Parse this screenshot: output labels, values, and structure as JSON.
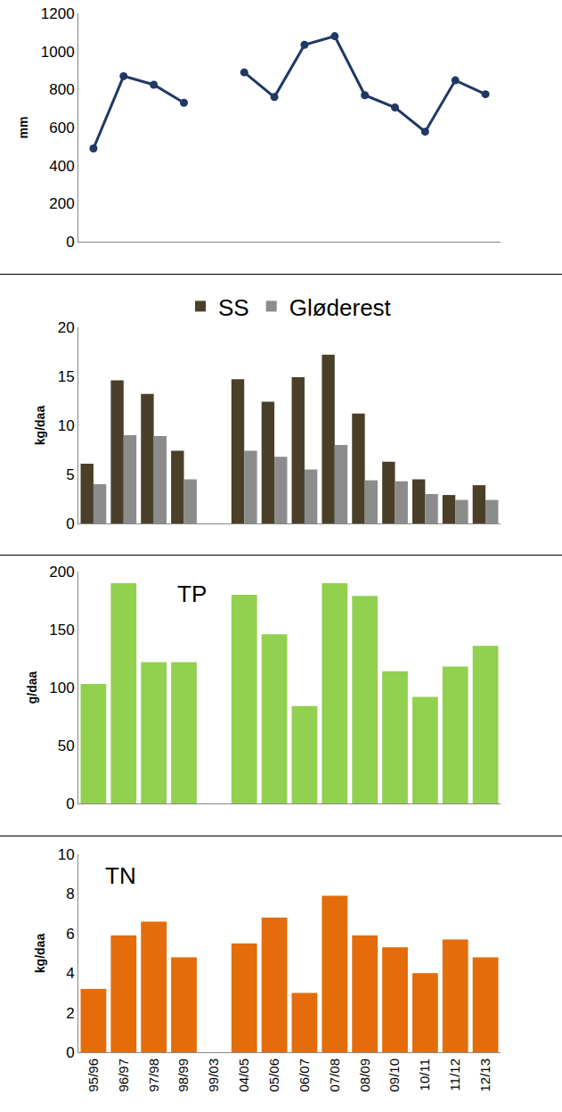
{
  "chart_data": [
    {
      "type": "line",
      "y_label": "mm",
      "categories": [
        "95/96",
        "96/97",
        "97/98",
        "98/99",
        "99/03",
        "04/05",
        "05/06",
        "06/07",
        "07/08",
        "08/09",
        "09/10",
        "10/11",
        "11/12",
        "12/13"
      ],
      "values": [
        490,
        870,
        825,
        730,
        null,
        890,
        760,
        1035,
        1080,
        770,
        705,
        578,
        848,
        775
      ],
      "color": "#203864",
      "marker": "circle",
      "ylim": [
        0,
        1200
      ],
      "yticks": [
        0,
        200,
        400,
        600,
        800,
        1000,
        1200
      ],
      "grid": false,
      "tick_labels": "y"
    },
    {
      "type": "bar",
      "y_label": "kg/daa",
      "categories": [
        "95/96",
        "96/97",
        "97/98",
        "98/99",
        "99/03",
        "04/05",
        "05/06",
        "06/07",
        "07/08",
        "08/09",
        "09/10",
        "10/11",
        "11/12",
        "12/13"
      ],
      "series": [
        {
          "name": "SS",
          "color": "#4a3f28",
          "values": [
            6.1,
            14.6,
            13.2,
            7.4,
            null,
            14.7,
            12.4,
            14.9,
            17.2,
            11.2,
            6.3,
            4.5,
            2.9,
            3.9
          ]
        },
        {
          "name": "Gløderest",
          "color": "#8c8c8c",
          "values": [
            4.0,
            9.0,
            8.9,
            4.5,
            null,
            7.4,
            6.8,
            5.5,
            8.0,
            4.4,
            4.3,
            3.0,
            2.4,
            2.4
          ]
        }
      ],
      "ylim": [
        0,
        20
      ],
      "yticks": [
        0,
        5,
        10,
        15,
        20
      ],
      "grid": false,
      "legend": "top",
      "tick_labels": "y"
    },
    {
      "type": "bar",
      "title": "TP",
      "y_label": "g/daa",
      "categories": [
        "95/96",
        "96/97",
        "97/98",
        "98/99",
        "99/03",
        "04/05",
        "05/06",
        "06/07",
        "07/08",
        "08/09",
        "09/10",
        "10/11",
        "11/12",
        "12/13"
      ],
      "values": [
        103,
        190,
        122,
        122,
        null,
        180,
        146,
        84,
        190,
        179,
        114,
        92,
        118,
        136
      ],
      "color": "#92d050",
      "ylim": [
        0,
        200
      ],
      "yticks": [
        0,
        50,
        100,
        150,
        200
      ],
      "grid": false,
      "tick_labels": "y"
    },
    {
      "type": "bar",
      "title": "TN",
      "y_label": "kg/daa",
      "categories": [
        "95/96",
        "96/97",
        "97/98",
        "98/99",
        "99/03",
        "04/05",
        "05/06",
        "06/07",
        "07/08",
        "08/09",
        "09/10",
        "10/11",
        "11/12",
        "12/13"
      ],
      "values": [
        3.2,
        5.9,
        6.6,
        4.8,
        null,
        5.5,
        6.8,
        3.0,
        7.9,
        5.9,
        5.3,
        4.0,
        5.7,
        4.8
      ],
      "color": "#e46c0a",
      "ylim": [
        0,
        10
      ],
      "yticks": [
        0,
        2,
        4,
        6,
        8,
        10
      ],
      "grid": false,
      "tick_labels": true
    }
  ]
}
